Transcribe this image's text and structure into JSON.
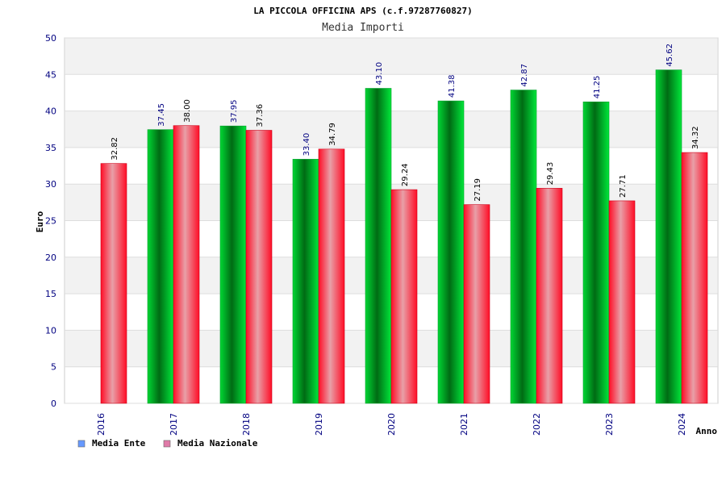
{
  "chart_data": {
    "type": "bar",
    "title": "LA PICCOLA OFFICINA APS (c.f.97287760827)",
    "subtitle": "Media Importi",
    "xlabel": "Anno",
    "ylabel": "Euro",
    "ylim": [
      0,
      50
    ],
    "yticks": [
      "0",
      "5",
      "10",
      "15",
      "20",
      "25",
      "30",
      "35",
      "40",
      "45",
      "50"
    ],
    "categories": [
      "2016",
      "2017",
      "2018",
      "2019",
      "2020",
      "2021",
      "2022",
      "2023",
      "2024"
    ],
    "grid": true,
    "legend_position": "bottom-left",
    "series": [
      {
        "name": "Media Ente",
        "color": "#00cc33",
        "legend_color": "#6699ff",
        "values": [
          null,
          37.45,
          37.95,
          33.4,
          43.1,
          41.38,
          42.87,
          41.25,
          45.62
        ],
        "labels": [
          "",
          "37.45",
          "37.95",
          "33.40",
          "43.10",
          "41.38",
          "42.87",
          "41.25",
          "45.62"
        ],
        "label_color": "#000080"
      },
      {
        "name": "Media Nazionale",
        "color": "#ff1a33",
        "legend_color": "#e07aa8",
        "values": [
          32.82,
          38.0,
          37.36,
          34.79,
          29.24,
          27.19,
          29.43,
          27.71,
          34.32
        ],
        "labels": [
          "32.82",
          "38.00",
          "37.36",
          "34.79",
          "29.24",
          "27.19",
          "29.43",
          "27.71",
          "34.32"
        ],
        "label_color": "#000000"
      }
    ]
  }
}
